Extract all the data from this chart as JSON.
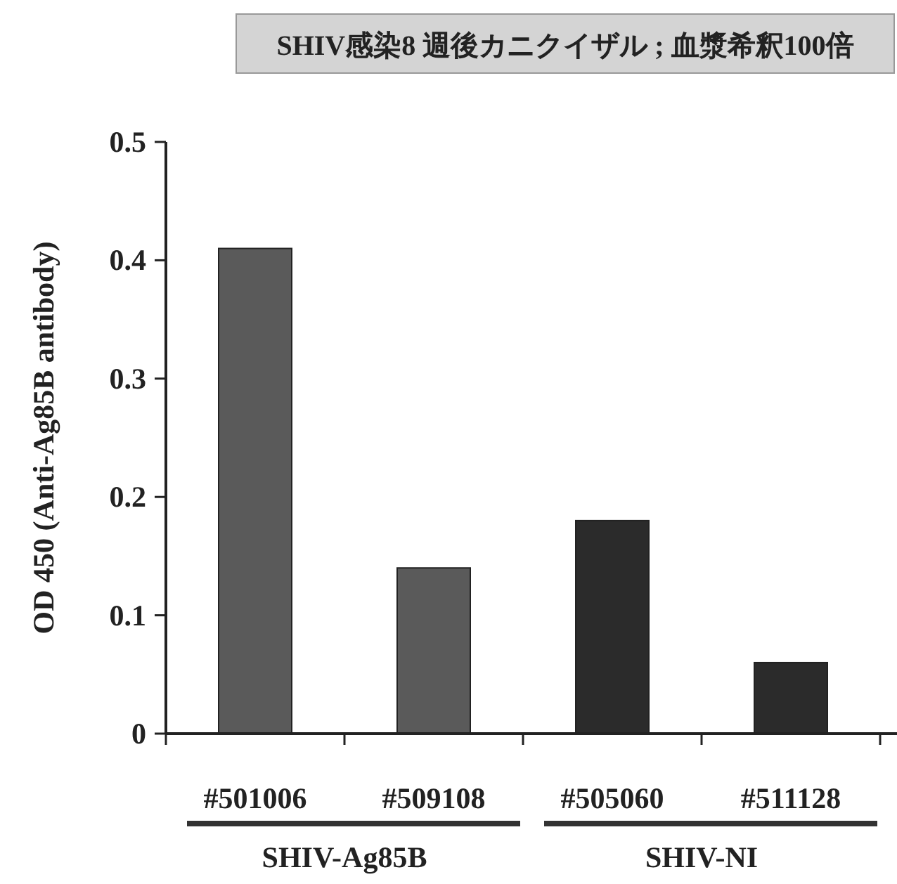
{
  "chart_data": {
    "type": "bar",
    "title": "SHIV感染8 週後カニクイザル ; 血漿希釈100倍",
    "ylabel": "OD 450 (Anti-Ag85B antibody)",
    "categories": [
      "#501006",
      "#509108",
      "#505060",
      "#511128"
    ],
    "values": [
      0.41,
      0.14,
      0.18,
      0.06
    ],
    "colors": [
      "#5a5a5a",
      "#5a5a5a",
      "#2b2b2b",
      "#2b2b2b"
    ],
    "ylim": [
      0,
      0.5
    ],
    "yticks": [
      0,
      0.1,
      0.2,
      0.3,
      0.4,
      0.5
    ],
    "annotations": [
      "SHIV-Ag85B",
      "SHIV-NI"
    ],
    "grid": false
  }
}
